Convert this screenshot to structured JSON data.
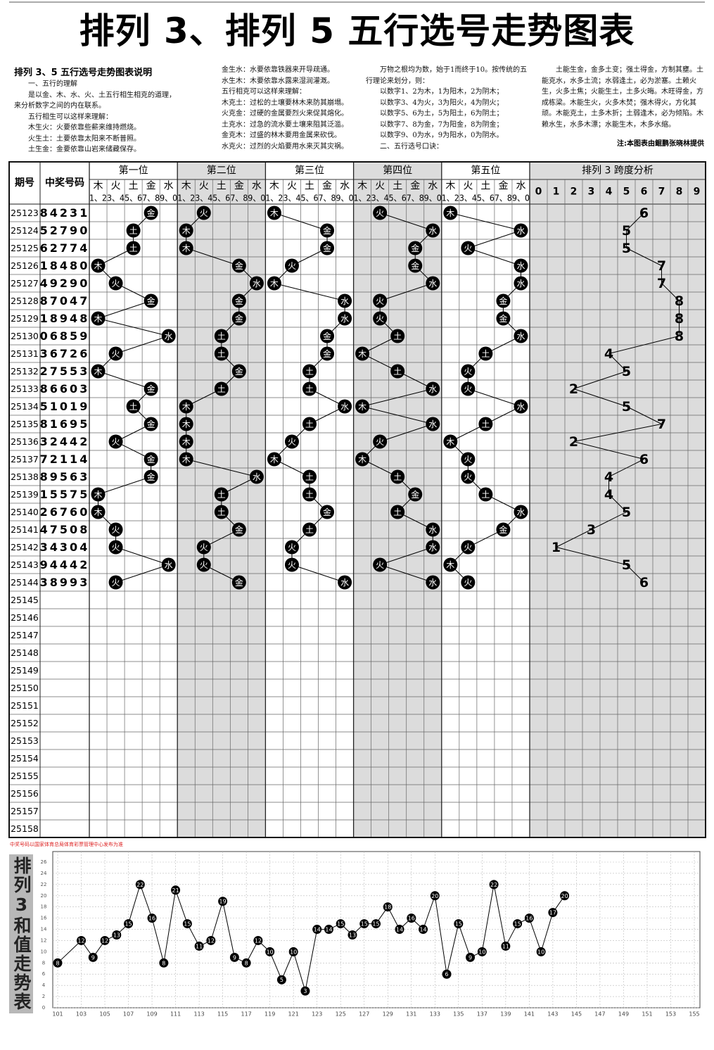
{
  "header": {
    "title": "排列 3、排列 5 五行选号走势图表"
  },
  "explanation": {
    "heading": "排列 3、5 五行选号走势图表说明",
    "columns": [
      [
        "一、五行的理解",
        "是以金、木、水、火、土五行相生相克的道理，来分析数字之间的内在联系。",
        "五行相生可以这样来理解：",
        "木生火：火要依靠些薪来维持燃烧。",
        "火生土：土要依靠太阳来不断普照。",
        "土生金：金要依靠山岩来储藏保存。"
      ],
      [
        "金生水：水要依靠铁器来开导疏通。",
        "水生木：木要依靠水露来湿润灌溉。",
        "五行相克可以这样来理解：",
        "木克土：过松的土壤要林木来防其崩塌。",
        "火克金：过硬的金属要烈火来促其熔化。",
        "土克水：过急的流水要土壤来阻其泛滥。",
        "金克木：过盛的林木要用金属来砍伐。",
        "水克火：过烈的火焰要用水来灭其灾祸。"
      ],
      [
        "万物之根均为数，始于1而终于10。按传统的五行理论来划分，则：",
        "以数字1、2为木，1为阳木，2为阴木；",
        "以数字3、4为火，3为阳火，4为阴火；",
        "以数字5、6为土，5为阳土，6为阴土；",
        "以数字7、8为金，7为阳金，8为阴金；",
        "以数字9、0为水，9为阳水，0为阴水。",
        "二、五行选号口诀："
      ],
      [
        "土能生金，金多土变；强土得金，方制其壅。土能克水，水多土流；水弱逢土，必为淤塞。土赖火生，火多土焦；火能生土，土多火晦。木旺得金，方成栋梁。木能生火，火多木焚；强木得火，方化其顽。木能克土，土多木折；土弱逢木，必为倾陷。木赖水生，水多木漂；水能生木，木多水缩。"
      ]
    ],
    "credit": "注:本图表由鲲鹏张晓林提供"
  },
  "table": {
    "col_issue": "期号",
    "col_number": "中奖号码",
    "positions": [
      "第一位",
      "第二位",
      "第三位",
      "第四位",
      "第五位"
    ],
    "span_title": "排列 3 跨度分析",
    "elements": [
      {
        "name": "木",
        "digits": "1、2"
      },
      {
        "name": "火",
        "digits": "3、4"
      },
      {
        "name": "土",
        "digits": "5、6"
      },
      {
        "name": "金",
        "digits": "7、8"
      },
      {
        "name": "水",
        "digits": "9、0"
      }
    ],
    "span_columns": [
      0,
      1,
      2,
      3,
      4,
      5,
      6,
      7,
      8,
      9
    ],
    "rows": [
      {
        "issue": "25123",
        "number": "84231",
        "span": 6
      },
      {
        "issue": "25124",
        "number": "52790",
        "span": 5
      },
      {
        "issue": "25125",
        "number": "62774",
        "span": 5
      },
      {
        "issue": "25126",
        "number": "18480",
        "span": 7
      },
      {
        "issue": "25127",
        "number": "49290",
        "span": 7
      },
      {
        "issue": "25128",
        "number": "87047",
        "span": 8
      },
      {
        "issue": "25129",
        "number": "18948",
        "span": 8
      },
      {
        "issue": "25130",
        "number": "06859",
        "span": 8
      },
      {
        "issue": "25131",
        "number": "36726",
        "span": 4
      },
      {
        "issue": "25132",
        "number": "27553",
        "span": 5
      },
      {
        "issue": "25133",
        "number": "86603",
        "span": 2
      },
      {
        "issue": "25134",
        "number": "51019",
        "span": 5
      },
      {
        "issue": "25135",
        "number": "81695",
        "span": 7
      },
      {
        "issue": "25136",
        "number": "32442",
        "span": 2
      },
      {
        "issue": "25137",
        "number": "72114",
        "span": 6
      },
      {
        "issue": "25138",
        "number": "89563",
        "span": 4
      },
      {
        "issue": "25139",
        "number": "15575",
        "span": 4
      },
      {
        "issue": "25140",
        "number": "26760",
        "span": 5
      },
      {
        "issue": "25141",
        "number": "47508",
        "span": 3
      },
      {
        "issue": "25142",
        "number": "34304",
        "span": 1
      },
      {
        "issue": "25143",
        "number": "94442",
        "span": 5
      },
      {
        "issue": "25144",
        "number": "38993",
        "span": 6
      },
      {
        "issue": "25145"
      },
      {
        "issue": "25146"
      },
      {
        "issue": "25147"
      },
      {
        "issue": "25148"
      },
      {
        "issue": "25149"
      },
      {
        "issue": "25150"
      },
      {
        "issue": "25151"
      },
      {
        "issue": "25152"
      },
      {
        "issue": "25153"
      },
      {
        "issue": "25154"
      },
      {
        "issue": "25155"
      },
      {
        "issue": "25156"
      },
      {
        "issue": "25157"
      },
      {
        "issue": "25158"
      }
    ]
  },
  "footnote": "中奖号码以国家体育总局体育彩票管理中心发布为准",
  "chart_data": {
    "type": "line",
    "title": "排列3和值走势表",
    "x": [
      101,
      103,
      104,
      105,
      106,
      107,
      108,
      109,
      110,
      111,
      112,
      113,
      114,
      115,
      116,
      117,
      118,
      119,
      120,
      121,
      122,
      123,
      124,
      125,
      126,
      127,
      128,
      129,
      130,
      131,
      132,
      133,
      134,
      135,
      136,
      137,
      138,
      139,
      140,
      141,
      142,
      143,
      144
    ],
    "values": [
      8,
      12,
      9,
      12,
      13,
      15,
      22,
      16,
      8,
      21,
      15,
      11,
      12,
      19,
      9,
      8,
      12,
      10,
      5,
      10,
      3,
      14,
      14,
      15,
      13,
      15,
      15,
      18,
      14,
      16,
      14,
      20,
      6,
      15,
      9,
      10,
      22,
      11,
      15,
      16,
      10,
      17,
      20
    ],
    "color": "#000000",
    "xlim": [
      101,
      155
    ],
    "xticks": [
      101,
      103,
      105,
      107,
      109,
      111,
      113,
      115,
      117,
      119,
      121,
      123,
      125,
      127,
      129,
      131,
      133,
      135,
      137,
      139,
      141,
      143,
      145,
      147,
      149,
      151,
      153,
      155
    ],
    "ylim": [
      0,
      26
    ],
    "yticks": [
      0,
      2,
      4,
      6,
      8,
      10,
      12,
      14,
      16,
      18,
      20,
      22,
      24,
      26
    ],
    "grid": true
  }
}
